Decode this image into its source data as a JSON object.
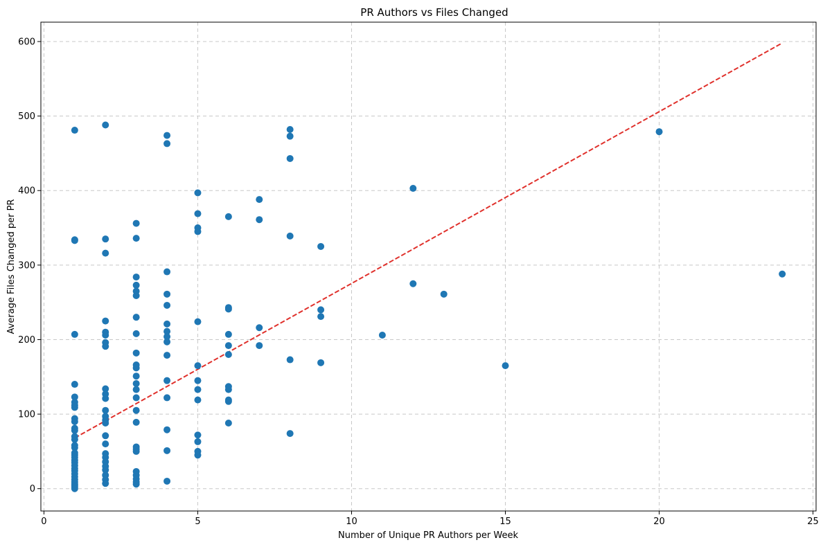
{
  "chart_data": {
    "type": "scatter",
    "title": "PR Authors vs Files Changed",
    "xlabel": "Number of Unique PR Authors per Week",
    "ylabel": "Average Files Changed per PR",
    "xlim": [
      -0.1,
      25.1
    ],
    "ylim": [
      -30,
      626
    ],
    "xticks": [
      0,
      5,
      10,
      15,
      20,
      25
    ],
    "yticks": [
      0,
      100,
      200,
      300,
      400,
      500,
      600
    ],
    "grid": true,
    "colors": {
      "points": "#1f77b4",
      "trend": "#e0302b",
      "grid": "#c8c8c8"
    },
    "series": [
      {
        "points": [
          [
            1,
            481
          ],
          [
            1,
            334
          ],
          [
            1,
            333
          ],
          [
            1,
            207
          ],
          [
            1,
            140
          ],
          [
            1,
            123
          ],
          [
            1,
            116
          ],
          [
            1,
            112
          ],
          [
            1,
            109
          ],
          [
            1,
            94
          ],
          [
            1,
            90
          ],
          [
            1,
            81
          ],
          [
            1,
            78
          ],
          [
            1,
            70
          ],
          [
            1,
            66
          ],
          [
            1,
            58
          ],
          [
            1,
            55
          ],
          [
            1,
            48
          ],
          [
            1,
            45
          ],
          [
            1,
            42
          ],
          [
            1,
            38
          ],
          [
            1,
            35
          ],
          [
            1,
            31
          ],
          [
            1,
            27
          ],
          [
            1,
            24
          ],
          [
            1,
            20
          ],
          [
            1,
            16
          ],
          [
            1,
            12
          ],
          [
            1,
            9
          ],
          [
            1,
            6
          ],
          [
            1,
            4
          ],
          [
            1,
            2
          ],
          [
            1,
            0
          ],
          [
            2,
            488
          ],
          [
            2,
            335
          ],
          [
            2,
            316
          ],
          [
            2,
            225
          ],
          [
            2,
            210
          ],
          [
            2,
            206
          ],
          [
            2,
            196
          ],
          [
            2,
            191
          ],
          [
            2,
            134
          ],
          [
            2,
            127
          ],
          [
            2,
            121
          ],
          [
            2,
            105
          ],
          [
            2,
            97
          ],
          [
            2,
            92
          ],
          [
            2,
            88
          ],
          [
            2,
            71
          ],
          [
            2,
            60
          ],
          [
            2,
            47
          ],
          [
            2,
            42
          ],
          [
            2,
            36
          ],
          [
            2,
            30
          ],
          [
            2,
            25
          ],
          [
            2,
            18
          ],
          [
            2,
            12
          ],
          [
            2,
            7
          ],
          [
            3,
            356
          ],
          [
            3,
            336
          ],
          [
            3,
            284
          ],
          [
            3,
            273
          ],
          [
            3,
            265
          ],
          [
            3,
            259
          ],
          [
            3,
            230
          ],
          [
            3,
            208
          ],
          [
            3,
            182
          ],
          [
            3,
            166
          ],
          [
            3,
            162
          ],
          [
            3,
            151
          ],
          [
            3,
            141
          ],
          [
            3,
            133
          ],
          [
            3,
            122
          ],
          [
            3,
            105
          ],
          [
            3,
            89
          ],
          [
            3,
            56
          ],
          [
            3,
            53
          ],
          [
            3,
            50
          ],
          [
            3,
            23
          ],
          [
            3,
            18
          ],
          [
            3,
            13
          ],
          [
            3,
            9
          ],
          [
            3,
            6
          ],
          [
            4,
            474
          ],
          [
            4,
            463
          ],
          [
            4,
            291
          ],
          [
            4,
            261
          ],
          [
            4,
            246
          ],
          [
            4,
            221
          ],
          [
            4,
            211
          ],
          [
            4,
            204
          ],
          [
            4,
            197
          ],
          [
            4,
            179
          ],
          [
            4,
            145
          ],
          [
            4,
            122
          ],
          [
            4,
            79
          ],
          [
            4,
            51
          ],
          [
            4,
            10
          ],
          [
            5,
            397
          ],
          [
            5,
            369
          ],
          [
            5,
            350
          ],
          [
            5,
            345
          ],
          [
            5,
            224
          ],
          [
            5,
            165
          ],
          [
            5,
            145
          ],
          [
            5,
            133
          ],
          [
            5,
            119
          ],
          [
            5,
            72
          ],
          [
            5,
            63
          ],
          [
            5,
            50
          ],
          [
            5,
            45
          ],
          [
            6,
            365
          ],
          [
            6,
            243
          ],
          [
            6,
            241
          ],
          [
            6,
            207
          ],
          [
            6,
            192
          ],
          [
            6,
            180
          ],
          [
            6,
            137
          ],
          [
            6,
            133
          ],
          [
            6,
            119
          ],
          [
            6,
            117
          ],
          [
            6,
            88
          ],
          [
            7,
            388
          ],
          [
            7,
            361
          ],
          [
            7,
            216
          ],
          [
            7,
            192
          ],
          [
            8,
            482
          ],
          [
            8,
            473
          ],
          [
            8,
            443
          ],
          [
            8,
            339
          ],
          [
            8,
            173
          ],
          [
            8,
            74
          ],
          [
            9,
            325
          ],
          [
            9,
            240
          ],
          [
            9,
            231
          ],
          [
            9,
            169
          ],
          [
            11,
            206
          ],
          [
            12,
            403
          ],
          [
            12,
            275
          ],
          [
            13,
            261
          ],
          [
            15,
            165
          ],
          [
            20,
            479
          ],
          [
            24,
            288
          ]
        ]
      }
    ],
    "trendline": {
      "x": [
        1,
        24
      ],
      "y": [
        68,
        598
      ]
    }
  }
}
